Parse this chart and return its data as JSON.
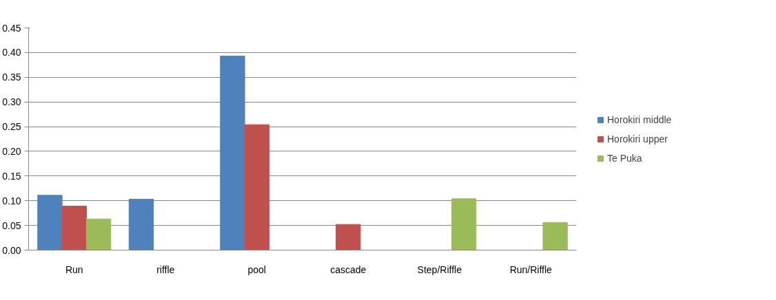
{
  "chart_data": {
    "type": "bar",
    "categories": [
      "Run",
      "riffle",
      "pool",
      "cascade",
      "Step/Riffle",
      "Run/Riffle"
    ],
    "series": [
      {
        "name": "Horokiri middle",
        "color": "#4f81bd",
        "values": [
          0.111,
          0.103,
          0.393,
          null,
          null,
          null
        ]
      },
      {
        "name": "Horokiri upper",
        "color": "#c0504d",
        "values": [
          0.089,
          null,
          0.254,
          0.052,
          null,
          null
        ]
      },
      {
        "name": "Te Puka",
        "color": "#9bbb59",
        "values": [
          0.063,
          null,
          null,
          null,
          0.104,
          0.056
        ]
      }
    ],
    "ylim": [
      0,
      0.45
    ],
    "yticks": [
      {
        "value": 0,
        "label": "0.00"
      },
      {
        "value": 0.05,
        "label": "0.05"
      },
      {
        "value": 0.1,
        "label": "0.10"
      },
      {
        "value": 0.15,
        "label": "0.15"
      },
      {
        "value": 0.2,
        "label": "0.20"
      },
      {
        "value": 0.25,
        "label": "0.25"
      },
      {
        "value": 0.3,
        "label": "0.30"
      },
      {
        "value": 0.35,
        "label": "0.35"
      },
      {
        "value": 0.4,
        "label": "0.40"
      },
      {
        "value": 0.45,
        "label": "0.45"
      }
    ],
    "grid": "y",
    "legend": "right"
  }
}
